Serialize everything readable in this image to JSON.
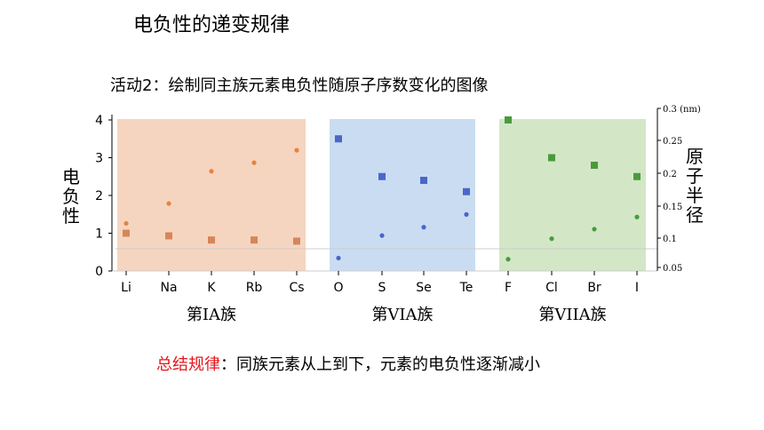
{
  "page": {
    "title": "电负性的递变规律",
    "activity": "活动2：绘制同主族元素电负性随原子序数变化的图像",
    "summary_lead": "总结规律",
    "summary_rest": "：同族元素从上到下，元素的电负性逐渐减小"
  },
  "chart_data": {
    "type": "scatter",
    "categories": [
      "Li",
      "Na",
      "K",
      "Rb",
      "Cs",
      "O",
      "S",
      "Se",
      "Te",
      "F",
      "Cl",
      "Br",
      "I"
    ],
    "ylabel": "电负性",
    "y2label": "原子半径",
    "y2unit": "(nm)",
    "ylim": [
      0,
      4
    ],
    "yticks": [
      0,
      1,
      2,
      3,
      4
    ],
    "y2lim": [
      0.05,
      0.3
    ],
    "y2ticks": [
      "0.05",
      "0.1",
      "0.15",
      "0.2",
      "0.25",
      "0.3"
    ],
    "groups": [
      {
        "label": "第IA族",
        "color": "#f6d5c0",
        "members": [
          "Li",
          "Na",
          "K",
          "Rb",
          "Cs"
        ]
      },
      {
        "label": "第VIA族",
        "color": "#cadcf1",
        "members": [
          "O",
          "S",
          "Se",
          "Te"
        ]
      },
      {
        "label": "第VIIA族",
        "color": "#d3e7c6",
        "members": [
          "F",
          "Cl",
          "Br",
          "I"
        ]
      }
    ],
    "series": [
      {
        "marker": "square",
        "axis": "left",
        "points": [
          {
            "x": "Li",
            "y": 1.0,
            "color": "#d6865a"
          },
          {
            "x": "Na",
            "y": 0.93,
            "color": "#d6865a"
          },
          {
            "x": "K",
            "y": 0.82,
            "color": "#d6865a"
          },
          {
            "x": "Rb",
            "y": 0.82,
            "color": "#d6865a"
          },
          {
            "x": "Cs",
            "y": 0.79,
            "color": "#d6865a"
          },
          {
            "x": "O",
            "y": 3.5,
            "color": "#4a66c9"
          },
          {
            "x": "S",
            "y": 2.5,
            "color": "#4a66c9"
          },
          {
            "x": "Se",
            "y": 2.4,
            "color": "#4a66c9"
          },
          {
            "x": "Te",
            "y": 2.1,
            "color": "#4a66c9"
          },
          {
            "x": "F",
            "y": 4.0,
            "color": "#4a9a3e"
          },
          {
            "x": "Cl",
            "y": 3.0,
            "color": "#4a9a3e"
          },
          {
            "x": "Br",
            "y": 2.8,
            "color": "#4a9a3e"
          },
          {
            "x": "I",
            "y": 2.5,
            "color": "#4a9a3e"
          }
        ]
      },
      {
        "marker": "circle",
        "axis": "right",
        "points": [
          {
            "x": "Li",
            "y": 0.123,
            "color": "#e8823f"
          },
          {
            "x": "Na",
            "y": 0.154,
            "color": "#e8823f"
          },
          {
            "x": "K",
            "y": 0.203,
            "color": "#e8823f"
          },
          {
            "x": "Rb",
            "y": 0.216,
            "color": "#e8823f"
          },
          {
            "x": "Cs",
            "y": 0.235,
            "color": "#e8823f"
          },
          {
            "x": "O",
            "y": 0.066,
            "color": "#4a66c9"
          },
          {
            "x": "S",
            "y": 0.104,
            "color": "#4a66c9"
          },
          {
            "x": "Se",
            "y": 0.117,
            "color": "#4a66c9"
          },
          {
            "x": "Te",
            "y": 0.137,
            "color": "#4a66c9"
          },
          {
            "x": "F",
            "y": 0.064,
            "color": "#4a9a3e"
          },
          {
            "x": "Cl",
            "y": 0.099,
            "color": "#4a9a3e"
          },
          {
            "x": "Br",
            "y": 0.114,
            "color": "#4a9a3e"
          },
          {
            "x": "I",
            "y": 0.133,
            "color": "#4a9a3e"
          }
        ]
      }
    ]
  }
}
